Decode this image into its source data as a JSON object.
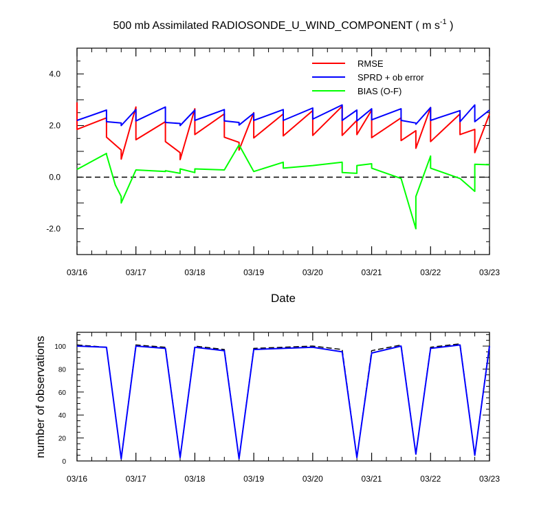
{
  "chart_data": [
    {
      "type": "line",
      "title": "500 mb Assimilated RADIOSONDE_U_WIND_COMPONENT ( m s",
      "title_superscript": "-1",
      "title_suffix": " )",
      "xlabel": "Date",
      "ylabel": "",
      "xlim": [
        0,
        7
      ],
      "ylim": [
        -3,
        5
      ],
      "x_tick_labels": [
        "03/16",
        "03/17",
        "03/18",
        "03/19",
        "03/20",
        "03/21",
        "03/22",
        "03/23"
      ],
      "y_ticks": [
        -2,
        0,
        2,
        4
      ],
      "y_tick_labels": [
        "-2.0",
        "0.0",
        "2.0",
        "4.0"
      ],
      "zero_line": "dashed",
      "legend_position": "top-right",
      "series": [
        {
          "name": "RMSE",
          "color": "#ff0000",
          "x": [
            0.0,
            0.0,
            0.5,
            0.5,
            0.75,
            0.75,
            1.0,
            1.0,
            1.5,
            1.5,
            1.75,
            1.75,
            2.0,
            2.0,
            2.5,
            2.5,
            2.75,
            2.75,
            3.0,
            3.0,
            3.5,
            3.5,
            4.0,
            4.0,
            4.5,
            4.5,
            4.75,
            4.75,
            5.0,
            5.0,
            5.5,
            5.5,
            5.75,
            5.75,
            6.0,
            6.0,
            6.5,
            6.5,
            6.75,
            6.75,
            7.0
          ],
          "y": [
            2.9,
            1.85,
            2.3,
            1.55,
            1.05,
            0.7,
            2.72,
            1.45,
            2.15,
            1.38,
            0.95,
            0.68,
            2.65,
            1.65,
            2.45,
            1.55,
            1.35,
            1.05,
            2.5,
            1.52,
            2.45,
            1.6,
            2.58,
            1.62,
            2.75,
            1.62,
            2.2,
            1.65,
            2.6,
            1.53,
            2.3,
            1.42,
            1.8,
            1.12,
            2.7,
            1.38,
            2.45,
            1.65,
            1.85,
            0.95,
            2.45
          ]
        },
        {
          "name": "SPRD + ob error",
          "color": "#0000ff",
          "x": [
            0.0,
            0.5,
            0.5,
            0.75,
            0.75,
            1.0,
            1.0,
            1.5,
            1.5,
            1.75,
            1.75,
            2.0,
            2.0,
            2.5,
            2.5,
            2.75,
            2.75,
            3.0,
            3.0,
            3.5,
            3.5,
            4.0,
            4.0,
            4.5,
            4.5,
            4.75,
            4.75,
            5.0,
            5.0,
            5.5,
            5.5,
            5.75,
            5.75,
            6.0,
            6.0,
            6.5,
            6.5,
            6.75,
            6.75,
            7.0
          ],
          "y": [
            2.2,
            2.6,
            2.15,
            2.1,
            2.0,
            2.62,
            2.18,
            2.72,
            2.12,
            2.08,
            2.0,
            2.6,
            2.2,
            2.62,
            2.18,
            2.12,
            2.02,
            2.48,
            2.2,
            2.62,
            2.2,
            2.68,
            2.25,
            2.8,
            2.2,
            2.6,
            2.18,
            2.65,
            2.22,
            2.65,
            2.2,
            2.1,
            2.05,
            2.7,
            2.2,
            2.58,
            2.15,
            2.8,
            2.15,
            2.6
          ]
        },
        {
          "name": "BIAS (O-F)",
          "color": "#00ff00",
          "x": [
            0.0,
            0.5,
            0.5,
            0.65,
            0.75,
            0.75,
            1.0,
            1.5,
            1.5,
            1.75,
            1.75,
            2.0,
            2.0,
            2.5,
            2.75,
            3.0,
            3.5,
            3.5,
            4.0,
            4.5,
            4.5,
            4.75,
            4.75,
            5.0,
            5.0,
            5.5,
            5.75,
            5.75,
            6.0,
            6.0,
            6.5,
            6.75,
            6.75,
            7.0
          ],
          "y": [
            0.3,
            0.92,
            0.88,
            -0.3,
            -0.75,
            -1.0,
            0.28,
            0.22,
            0.25,
            0.15,
            0.32,
            0.18,
            0.32,
            0.28,
            1.25,
            0.22,
            0.58,
            0.35,
            0.45,
            0.58,
            0.18,
            0.15,
            0.45,
            0.52,
            0.35,
            -0.05,
            -2.0,
            -0.75,
            0.82,
            0.35,
            -0.05,
            -0.55,
            0.5,
            0.48
          ]
        }
      ]
    },
    {
      "type": "line",
      "title": "",
      "xlabel": "",
      "ylabel": "number of observations",
      "xlim": [
        0,
        7
      ],
      "ylim": [
        0,
        112
      ],
      "x_tick_labels": [
        "03/16",
        "03/17",
        "03/18",
        "03/19",
        "03/20",
        "03/21",
        "03/22",
        "03/23"
      ],
      "y_ticks": [
        0,
        20,
        40,
        60,
        80,
        100
      ],
      "y_tick_labels": [
        "0",
        "20",
        "40",
        "60",
        "80",
        "100"
      ],
      "series": [
        {
          "color": "#000000",
          "style": "dashed",
          "x": [
            0.0,
            0.5,
            0.75,
            1.0,
            1.5,
            1.75,
            2.0,
            2.5,
            2.75,
            3.0,
            4.0,
            4.5,
            4.75,
            5.0,
            5.5,
            5.75,
            6.0,
            6.5,
            6.75,
            7.0
          ],
          "y": [
            101,
            99,
            2,
            101,
            99,
            3,
            100,
            97,
            2,
            98,
            100,
            97,
            3,
            96,
            101,
            6,
            99,
            102,
            5,
            101
          ]
        },
        {
          "color": "#0000ff",
          "style": "solid",
          "x": [
            0.0,
            0.5,
            0.75,
            1.0,
            1.5,
            1.75,
            2.0,
            2.5,
            2.75,
            3.0,
            4.0,
            4.5,
            4.75,
            5.0,
            5.5,
            5.75,
            6.0,
            6.5,
            6.75,
            7.0
          ],
          "y": [
            100,
            99,
            2,
            100,
            98,
            3,
            99,
            96,
            2,
            97,
            99,
            95,
            3,
            94,
            100,
            6,
            98,
            101,
            5,
            100
          ]
        }
      ]
    }
  ]
}
